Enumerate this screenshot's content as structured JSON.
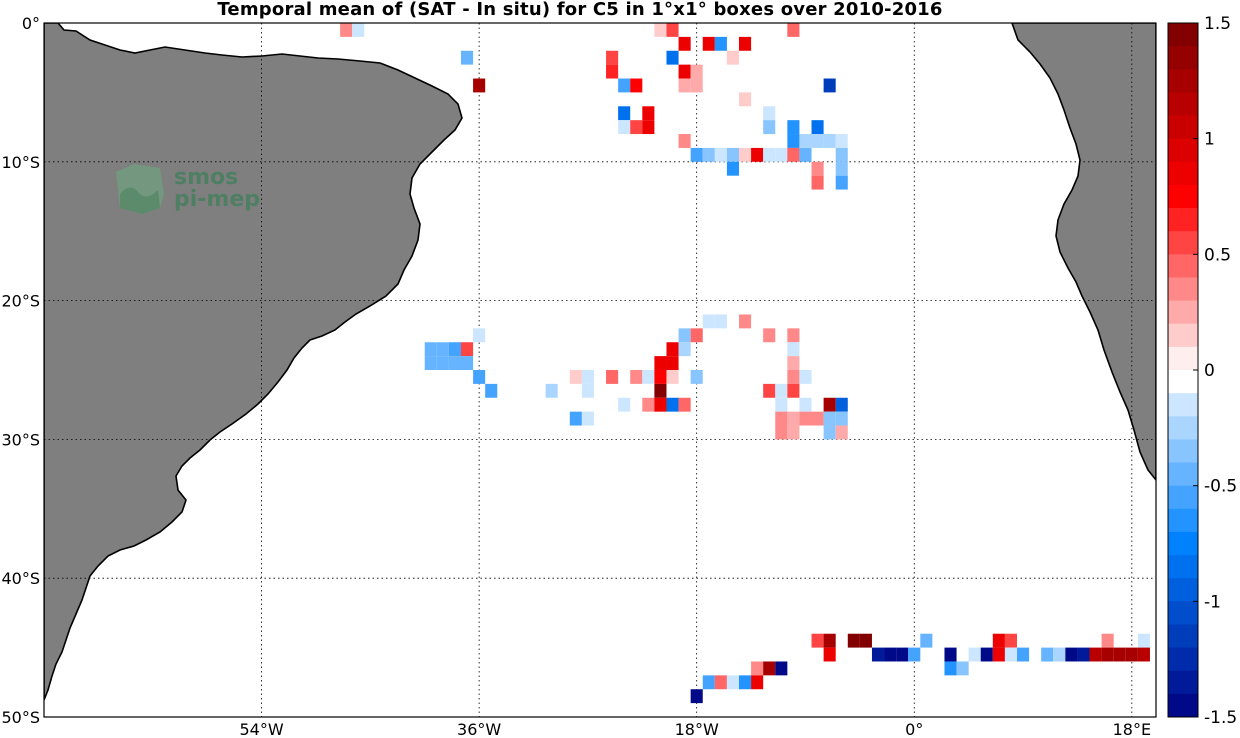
{
  "title": "Temporal mean of (SAT - In situ) for C5 in 1°x1° boxes over 2010-2016",
  "logo": {
    "line1": "smos",
    "line2": "pi-mep"
  },
  "colors": {
    "land": "#7f7f7f",
    "coast": "#000000",
    "grid": "#000000",
    "background": "#ffffff"
  },
  "map": {
    "lon_range": [
      -72,
      20
    ],
    "lat_range": [
      -50,
      0
    ],
    "lon_ticks": [
      {
        "value": -54,
        "label": "54°W"
      },
      {
        "value": -36,
        "label": "36°W"
      },
      {
        "value": -18,
        "label": "18°W"
      },
      {
        "value": 0,
        "label": "0°"
      },
      {
        "value": 18,
        "label": "18°E"
      }
    ],
    "lat_ticks": [
      {
        "value": 0,
        "label": "0°"
      },
      {
        "value": -10,
        "label": "10°S"
      },
      {
        "value": -20,
        "label": "20°S"
      },
      {
        "value": -30,
        "label": "30°S"
      },
      {
        "value": -40,
        "label": "40°S"
      },
      {
        "value": -50,
        "label": "50°S"
      }
    ],
    "grid": true
  },
  "chart_data": {
    "type": "heatmap",
    "title": "Temporal mean of (SAT - In situ) for C5 in 1°x1° boxes over 2010-2016",
    "units_box": "1°x1°",
    "color_scale": "blue-white-red",
    "clim": [
      -1.5,
      1.5
    ],
    "colorbar_ticks": [
      {
        "value": 1.5,
        "label": "1.5"
      },
      {
        "value": 1,
        "label": "1"
      },
      {
        "value": 0.5,
        "label": "0.5"
      },
      {
        "value": 0,
        "label": "0"
      },
      {
        "value": -0.5,
        "label": "-0.5"
      },
      {
        "value": -1,
        "label": "-1"
      },
      {
        "value": -1.5,
        "label": "-1.5"
      }
    ],
    "cells": [
      {
        "lon": -47,
        "lat": -0.5,
        "value": 0.35
      },
      {
        "lon": -46,
        "lat": -0.5,
        "value": -0.15
      },
      {
        "lon": -37,
        "lat": -2.5,
        "value": -0.45
      },
      {
        "lon": -36,
        "lat": -4.5,
        "value": 1.3
      },
      {
        "lon": -25,
        "lat": -2.5,
        "value": 0.5
      },
      {
        "lon": -25,
        "lat": -3.5,
        "value": 0.65
      },
      {
        "lon": -24,
        "lat": -4.5,
        "value": -0.6
      },
      {
        "lon": -23,
        "lat": -4.5,
        "value": 0.7
      },
      {
        "lon": -24,
        "lat": -6.5,
        "value": -0.8
      },
      {
        "lon": -24,
        "lat": -7.5,
        "value": -0.15
      },
      {
        "lon": -23,
        "lat": -7.5,
        "value": 0.5
      },
      {
        "lon": -22,
        "lat": -6.5,
        "value": 0.9
      },
      {
        "lon": -22,
        "lat": -7.5,
        "value": 0.9
      },
      {
        "lon": -21,
        "lat": -0.5,
        "value": 0.15
      },
      {
        "lon": -20,
        "lat": -0.5,
        "value": 0.5
      },
      {
        "lon": -19,
        "lat": -1.5,
        "value": 0.9
      },
      {
        "lon": -20,
        "lat": -2.5,
        "value": -0.8
      },
      {
        "lon": -19,
        "lat": -3.5,
        "value": 0.9
      },
      {
        "lon": -18,
        "lat": -3.5,
        "value": 0.2
      },
      {
        "lon": -17,
        "lat": -1.5,
        "value": 0.9
      },
      {
        "lon": -16,
        "lat": -1.5,
        "value": -0.7
      },
      {
        "lon": -19,
        "lat": -4.5,
        "value": 0.2
      },
      {
        "lon": -18,
        "lat": -4.5,
        "value": 0.2
      },
      {
        "lon": -15,
        "lat": -2.5,
        "value": 0.15
      },
      {
        "lon": -14,
        "lat": -1.5,
        "value": 0.9
      },
      {
        "lon": -14,
        "lat": -5.5,
        "value": 0.15
      },
      {
        "lon": -12,
        "lat": -6.5,
        "value": -0.15
      },
      {
        "lon": -12,
        "lat": -7.5,
        "value": -0.3
      },
      {
        "lon": -10,
        "lat": -0.5,
        "value": 0.4
      },
      {
        "lon": -10,
        "lat": -7.5,
        "value": -0.7
      },
      {
        "lon": -10,
        "lat": -8.5,
        "value": -0.7
      },
      {
        "lon": -8,
        "lat": -7.5,
        "value": -0.8
      },
      {
        "lon": -7,
        "lat": -4.5,
        "value": -1.1
      },
      {
        "lon": -19,
        "lat": -8.5,
        "value": 0.35
      },
      {
        "lon": -18,
        "lat": -9.5,
        "value": -0.6
      },
      {
        "lon": -17,
        "lat": -9.5,
        "value": -0.3
      },
      {
        "lon": -16,
        "lat": -9.5,
        "value": -0.15
      },
      {
        "lon": -15,
        "lat": -9.5,
        "value": -0.4
      },
      {
        "lon": -15,
        "lat": -10.5,
        "value": -0.7
      },
      {
        "lon": -14,
        "lat": -9.5,
        "value": 0.15
      },
      {
        "lon": -13,
        "lat": -9.5,
        "value": 0.9
      },
      {
        "lon": -12,
        "lat": -9.5,
        "value": -0.1
      },
      {
        "lon": -11,
        "lat": -9.5,
        "value": -0.15
      },
      {
        "lon": -10,
        "lat": -9.5,
        "value": 0.4
      },
      {
        "lon": -9,
        "lat": -9.5,
        "value": -0.5
      },
      {
        "lon": -9,
        "lat": -8.5,
        "value": -0.25
      },
      {
        "lon": -8,
        "lat": -8.5,
        "value": -0.25
      },
      {
        "lon": -7,
        "lat": -8.5,
        "value": -0.25
      },
      {
        "lon": -6,
        "lat": -8.5,
        "value": -0.15
      },
      {
        "lon": -6,
        "lat": -9.5,
        "value": -0.3
      },
      {
        "lon": -8,
        "lat": -10.5,
        "value": 0.35
      },
      {
        "lon": -8,
        "lat": -11.5,
        "value": 0.45
      },
      {
        "lon": -6,
        "lat": -10.5,
        "value": -0.3
      },
      {
        "lon": -6,
        "lat": -11.5,
        "value": -0.55
      },
      {
        "lon": -36,
        "lat": -22.5,
        "value": -0.2
      },
      {
        "lon": -40,
        "lat": -23.5,
        "value": -0.5
      },
      {
        "lon": -39,
        "lat": -23.5,
        "value": -0.5
      },
      {
        "lon": -38,
        "lat": -23.5,
        "value": -0.55
      },
      {
        "lon": -37,
        "lat": -23.5,
        "value": 0.55
      },
      {
        "lon": -40,
        "lat": -24.5,
        "value": -0.45
      },
      {
        "lon": -39,
        "lat": -24.5,
        "value": -0.5
      },
      {
        "lon": -37,
        "lat": -24.5,
        "value": -0.45
      },
      {
        "lon": -38,
        "lat": -24.5,
        "value": -0.5
      },
      {
        "lon": -36,
        "lat": -25.5,
        "value": -0.55
      },
      {
        "lon": -35,
        "lat": -26.5,
        "value": -0.6
      },
      {
        "lon": -30,
        "lat": -26.5,
        "value": -0.25
      },
      {
        "lon": -28,
        "lat": -25.5,
        "value": 0.15
      },
      {
        "lon": -27,
        "lat": -25.5,
        "value": -0.15
      },
      {
        "lon": -27,
        "lat": -26.5,
        "value": -0.15
      },
      {
        "lon": -28,
        "lat": -28.5,
        "value": -0.6
      },
      {
        "lon": -27,
        "lat": -28.5,
        "value": -0.2
      },
      {
        "lon": -25,
        "lat": -25.5,
        "value": 0.4
      },
      {
        "lon": -24,
        "lat": -27.5,
        "value": -0.1
      },
      {
        "lon": -23,
        "lat": -25.5,
        "value": 0.35
      },
      {
        "lon": -22,
        "lat": -25.5,
        "value": -0.15
      },
      {
        "lon": -22,
        "lat": -27.5,
        "value": 0.35
      },
      {
        "lon": -21,
        "lat": -24.5,
        "value": 0.9
      },
      {
        "lon": -21,
        "lat": -25.5,
        "value": 0.7
      },
      {
        "lon": -21,
        "lat": -26.5,
        "value": 1.4
      },
      {
        "lon": -21,
        "lat": -27.5,
        "value": 0.8
      },
      {
        "lon": -20,
        "lat": -23.5,
        "value": 0.8
      },
      {
        "lon": -20,
        "lat": -24.5,
        "value": 0.9
      },
      {
        "lon": -20,
        "lat": -25.5,
        "value": 0.15
      },
      {
        "lon": -20,
        "lat": -27.5,
        "value": -0.8
      },
      {
        "lon": -19,
        "lat": -22.5,
        "value": -0.35
      },
      {
        "lon": -19,
        "lat": -23.5,
        "value": -0.25
      },
      {
        "lon": -19,
        "lat": -27.5,
        "value": 0.4
      },
      {
        "lon": -18,
        "lat": -22.5,
        "value": 0.45
      },
      {
        "lon": -18,
        "lat": -25.5,
        "value": -0.4
      },
      {
        "lon": -17,
        "lat": -21.5,
        "value": -0.2
      },
      {
        "lon": -16,
        "lat": -21.5,
        "value": -0.15
      },
      {
        "lon": -14,
        "lat": -21.5,
        "value": 0.3
      },
      {
        "lon": -12,
        "lat": -22.5,
        "value": 0.35
      },
      {
        "lon": -10,
        "lat": -22.5,
        "value": 0.3
      },
      {
        "lon": -10,
        "lat": -23.5,
        "value": -0.15
      },
      {
        "lon": -10,
        "lat": -24.5,
        "value": 0.2
      },
      {
        "lon": -12,
        "lat": -26.5,
        "value": 0.55
      },
      {
        "lon": -11,
        "lat": -26.5,
        "value": -0.15
      },
      {
        "lon": -11,
        "lat": -27.5,
        "value": -0.15
      },
      {
        "lon": -11,
        "lat": -28.5,
        "value": 0.35
      },
      {
        "lon": -11,
        "lat": -29.5,
        "value": 0.35
      },
      {
        "lon": -10,
        "lat": -25.5,
        "value": 0.3
      },
      {
        "lon": -10,
        "lat": -26.5,
        "value": 0.5
      },
      {
        "lon": -10,
        "lat": -28.5,
        "value": 0.2
      },
      {
        "lon": -10,
        "lat": -29.5,
        "value": 0.2
      },
      {
        "lon": -9,
        "lat": -25.5,
        "value": -0.15
      },
      {
        "lon": -9,
        "lat": -27.5,
        "value": -0.15
      },
      {
        "lon": -9,
        "lat": -28.5,
        "value": 0.3
      },
      {
        "lon": -8,
        "lat": -28.5,
        "value": 0.3
      },
      {
        "lon": -7,
        "lat": -27.5,
        "value": 1.3
      },
      {
        "lon": -7,
        "lat": -28.5,
        "value": -0.3
      },
      {
        "lon": -7,
        "lat": -29.5,
        "value": -0.3
      },
      {
        "lon": -6,
        "lat": -27.5,
        "value": -0.9
      },
      {
        "lon": -6,
        "lat": -28.5,
        "value": -0.3
      },
      {
        "lon": -6,
        "lat": -29.5,
        "value": 0.25
      },
      {
        "lon": -8,
        "lat": -44.5,
        "value": 0.5
      },
      {
        "lon": -7,
        "lat": -44.5,
        "value": 1.3
      },
      {
        "lon": -7,
        "lat": -45.5,
        "value": 0.9
      },
      {
        "lon": -5,
        "lat": -44.5,
        "value": 1.4
      },
      {
        "lon": -4,
        "lat": -44.5,
        "value": 1.4
      },
      {
        "lon": -3,
        "lat": -45.5,
        "value": -1.4
      },
      {
        "lon": -2,
        "lat": -45.5,
        "value": -1.5
      },
      {
        "lon": -1,
        "lat": -45.5,
        "value": -1.5
      },
      {
        "lon": 0,
        "lat": -45.5,
        "value": -0.6
      },
      {
        "lon": 1,
        "lat": -44.5,
        "value": -0.5
      },
      {
        "lon": 3,
        "lat": -45.5,
        "value": -1.5
      },
      {
        "lon": 3,
        "lat": -46.5,
        "value": -0.7
      },
      {
        "lon": 4,
        "lat": -46.5,
        "value": -0.35
      },
      {
        "lon": 5,
        "lat": -45.5,
        "value": -0.2
      },
      {
        "lon": 6,
        "lat": -45.5,
        "value": -1.5
      },
      {
        "lon": 7,
        "lat": -45.5,
        "value": 0.8
      },
      {
        "lon": 7,
        "lat": -44.5,
        "value": 0.8
      },
      {
        "lon": 8,
        "lat": -44.5,
        "value": 0.5
      },
      {
        "lon": 8,
        "lat": -45.5,
        "value": -0.2
      },
      {
        "lon": 9,
        "lat": -45.5,
        "value": -0.55
      },
      {
        "lon": 11,
        "lat": -45.5,
        "value": -0.5
      },
      {
        "lon": 12,
        "lat": -45.5,
        "value": -0.25
      },
      {
        "lon": 13,
        "lat": -45.5,
        "value": -1.5
      },
      {
        "lon": 14,
        "lat": -45.5,
        "value": -1.4
      },
      {
        "lon": 15,
        "lat": -45.5,
        "value": 1.1
      },
      {
        "lon": 16,
        "lat": -44.5,
        "value": 0.3
      },
      {
        "lon": 16,
        "lat": -45.5,
        "value": 1.3
      },
      {
        "lon": 17,
        "lat": -45.5,
        "value": 1.3
      },
      {
        "lon": 18,
        "lat": -45.5,
        "value": 1.3
      },
      {
        "lon": 19,
        "lat": -44.5,
        "value": -0.15
      },
      {
        "lon": 19,
        "lat": -45.5,
        "value": 1.1
      },
      {
        "lon": -18,
        "lat": -48.5,
        "value": -1.5
      },
      {
        "lon": -17,
        "lat": -47.5,
        "value": -0.6
      },
      {
        "lon": -16,
        "lat": -47.5,
        "value": 0.4
      },
      {
        "lon": -15,
        "lat": -47.5,
        "value": -0.15
      },
      {
        "lon": -14,
        "lat": -47.5,
        "value": -0.7
      },
      {
        "lon": -13,
        "lat": -46.5,
        "value": 0.3
      },
      {
        "lon": -13,
        "lat": -47.5,
        "value": 0.9
      },
      {
        "lon": -12,
        "lat": -46.5,
        "value": 1.3
      },
      {
        "lon": -11,
        "lat": -46.5,
        "value": -1.5
      }
    ]
  }
}
